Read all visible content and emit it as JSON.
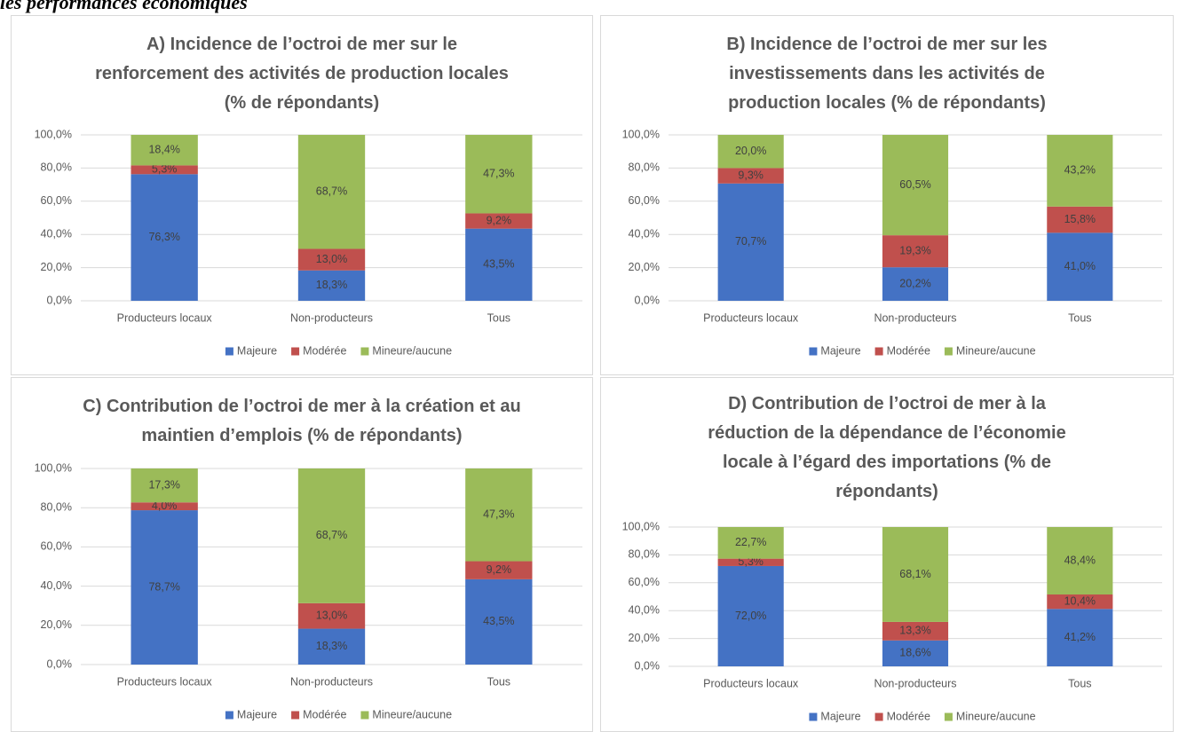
{
  "caption": "les performances économiques",
  "chart_data": [
    {
      "type": "bar",
      "stacked": true,
      "grid": true,
      "legend": "bottom",
      "title": "A) Incidence de l’octroi de mer sur le renforcement des activités de production locales (% de répondants)",
      "categories": [
        "Producteurs locaux",
        "Non-producteurs",
        "Tous"
      ],
      "ylim": [
        0,
        100
      ],
      "yticks": [
        {
          "value": 0,
          "label": "0,0%"
        },
        {
          "value": 20,
          "label": "20,0%"
        },
        {
          "value": 40,
          "label": "40,0%"
        },
        {
          "value": 60,
          "label": "60,0%"
        },
        {
          "value": 80,
          "label": "80,0%"
        },
        {
          "value": 100,
          "label": "100,0%"
        }
      ],
      "series": [
        {
          "name": "Majeure",
          "color": "#4472c4",
          "values": [
            76.3,
            18.3,
            43.5
          ],
          "value_labels": [
            "76,3%",
            "18,3%",
            "43,5%"
          ]
        },
        {
          "name": "Modérée",
          "color": "#c0504d",
          "values": [
            5.3,
            13.0,
            9.2
          ],
          "value_labels": [
            "5,3%",
            "13,0%",
            "9,2%"
          ]
        },
        {
          "name": "Mineure/aucune",
          "color": "#9bbb59",
          "values": [
            18.4,
            68.7,
            47.3
          ],
          "value_labels": [
            "18,4%",
            "68,7%",
            "47,3%"
          ]
        }
      ]
    },
    {
      "type": "bar",
      "stacked": true,
      "grid": true,
      "legend": "bottom",
      "title": "B) Incidence de l’octroi de mer sur les investissements dans les activités de production locales (% de répondants)",
      "categories": [
        "Producteurs locaux",
        "Non-producteurs",
        "Tous"
      ],
      "ylim": [
        0,
        100
      ],
      "yticks": [
        {
          "value": 0,
          "label": "0,0%"
        },
        {
          "value": 20,
          "label": "20,0%"
        },
        {
          "value": 40,
          "label": "40,0%"
        },
        {
          "value": 60,
          "label": "60,0%"
        },
        {
          "value": 80,
          "label": "80,0%"
        },
        {
          "value": 100,
          "label": "100,0%"
        }
      ],
      "series": [
        {
          "name": "Majeure",
          "color": "#4472c4",
          "values": [
            70.7,
            20.2,
            41.0
          ],
          "value_labels": [
            "70,7%",
            "20,2%",
            "41,0%"
          ]
        },
        {
          "name": "Modérée",
          "color": "#c0504d",
          "values": [
            9.3,
            19.3,
            15.8
          ],
          "value_labels": [
            "9,3%",
            "19,3%",
            "15,8%"
          ]
        },
        {
          "name": "Mineure/aucune",
          "color": "#9bbb59",
          "values": [
            20.0,
            60.5,
            43.2
          ],
          "value_labels": [
            "20,0%",
            "60,5%",
            "43,2%"
          ]
        }
      ]
    },
    {
      "type": "bar",
      "stacked": true,
      "grid": true,
      "legend": "bottom",
      "title": "C) Contribution de l’octroi de mer à la création et au maintien d’emplois (% de répondants)",
      "categories": [
        "Producteurs locaux",
        "Non-producteurs",
        "Tous"
      ],
      "ylim": [
        0,
        100
      ],
      "yticks": [
        {
          "value": 0,
          "label": "0,0%"
        },
        {
          "value": 20,
          "label": "20,0%"
        },
        {
          "value": 40,
          "label": "40,0%"
        },
        {
          "value": 60,
          "label": "60,0%"
        },
        {
          "value": 80,
          "label": "80,0%"
        },
        {
          "value": 100,
          "label": "100,0%"
        }
      ],
      "series": [
        {
          "name": "Majeure",
          "color": "#4472c4",
          "values": [
            78.7,
            18.3,
            43.5
          ],
          "value_labels": [
            "78,7%",
            "18,3%",
            "43,5%"
          ]
        },
        {
          "name": "Modérée",
          "color": "#c0504d",
          "values": [
            4.0,
            13.0,
            9.2
          ],
          "value_labels": [
            "4,0%",
            "13,0%",
            "9,2%"
          ]
        },
        {
          "name": "Mineure/aucune",
          "color": "#9bbb59",
          "values": [
            17.3,
            68.7,
            47.3
          ],
          "value_labels": [
            "17,3%",
            "68,7%",
            "47,3%"
          ]
        }
      ]
    },
    {
      "type": "bar",
      "stacked": true,
      "grid": true,
      "legend": "bottom",
      "title": "D) Contribution de l’octroi de mer à la réduction de la dépendance de l’économie locale à l’égard des importations (% de répondants)",
      "categories": [
        "Producteurs locaux",
        "Non-producteurs",
        "Tous"
      ],
      "ylim": [
        0,
        100
      ],
      "yticks": [
        {
          "value": 0,
          "label": "0,0%"
        },
        {
          "value": 20,
          "label": "20,0%"
        },
        {
          "value": 40,
          "label": "40,0%"
        },
        {
          "value": 60,
          "label": "60,0%"
        },
        {
          "value": 80,
          "label": "80,0%"
        },
        {
          "value": 100,
          "label": "100,0%"
        }
      ],
      "series": [
        {
          "name": "Majeure",
          "color": "#4472c4",
          "values": [
            72.0,
            18.6,
            41.2
          ],
          "value_labels": [
            "72,0%",
            "18,6%",
            "41,2%"
          ]
        },
        {
          "name": "Modérée",
          "color": "#c0504d",
          "values": [
            5.3,
            13.3,
            10.4
          ],
          "value_labels": [
            "5,3%",
            "13,3%",
            "10,4%"
          ]
        },
        {
          "name": "Mineure/aucune",
          "color": "#9bbb59",
          "values": [
            22.7,
            68.1,
            48.4
          ],
          "value_labels": [
            "22,7%",
            "68,1%",
            "48,4%"
          ]
        }
      ]
    }
  ]
}
